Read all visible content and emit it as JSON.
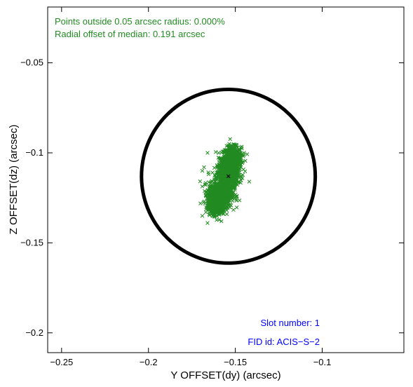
{
  "chart_data": {
    "type": "scatter",
    "xlabel": "Y OFFSET(dy) (arcsec)",
    "ylabel": "Z OFFSET(dz) (arcsec)",
    "xlim": [
      -0.258,
      -0.053
    ],
    "ylim": [
      -0.211,
      -0.019
    ],
    "x_ticks": [
      -0.25,
      -0.2,
      -0.15,
      -0.1
    ],
    "x_tick_labels": [
      "−0.25",
      "−0.2",
      "−0.15",
      "−0.1"
    ],
    "y_ticks": [
      -0.2,
      -0.15,
      -0.1,
      -0.05
    ],
    "y_tick_labels": [
      "−0.2",
      "−0.15",
      "−0.1",
      "−0.05"
    ],
    "grid": false,
    "circle": {
      "center": [
        -0.154,
        -0.113
      ],
      "radius": 0.05,
      "color": "#000000"
    },
    "median": [
      -0.154,
      -0.113
    ],
    "cluster_color": "#228b22",
    "cluster": [
      {
        "cx": -0.1518,
        "cy": -0.1035,
        "sx": 0.0032,
        "sy": 0.004,
        "n": 700
      },
      {
        "cx": -0.1545,
        "cy": -0.1125,
        "sx": 0.0034,
        "sy": 0.0045,
        "n": 700
      },
      {
        "cx": -0.1588,
        "cy": -0.123,
        "sx": 0.004,
        "sy": 0.004,
        "n": 800
      },
      {
        "cx": -0.161,
        "cy": -0.13,
        "sx": 0.003,
        "sy": 0.0028,
        "n": 350
      }
    ],
    "outliers": [
      [
        -0.147,
        -0.097
      ],
      [
        -0.15,
        -0.096
      ],
      [
        -0.145,
        -0.1
      ],
      [
        -0.166,
        -0.1
      ],
      [
        -0.168,
        -0.108
      ],
      [
        -0.169,
        -0.11
      ],
      [
        -0.169,
        -0.135
      ],
      [
        -0.166,
        -0.139
      ],
      [
        -0.158,
        -0.138
      ],
      [
        -0.147,
        -0.113
      ],
      [
        -0.142,
        -0.116
      ],
      [
        -0.167,
        -0.133
      ]
    ],
    "annotations": {
      "points_outside": "Points outside 0.05 arcsec radius: 0.000%",
      "radial_offset": "Radial offset of median: 0.191 arcsec",
      "slot": "Slot number: 1",
      "fid": "FID id: ACIS−S−2"
    },
    "colors": {
      "annotation_green": "#228b22",
      "annotation_blue": "#0000ff"
    }
  }
}
